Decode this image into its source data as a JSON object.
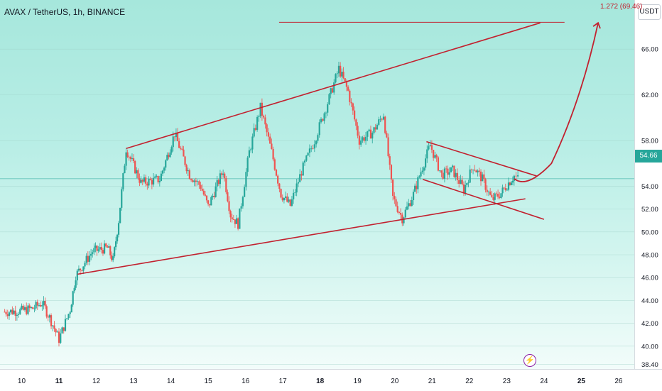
{
  "header": {
    "symbol_title": "AVAX / TetherUS, 1h, BINANCE",
    "currency": "USDT"
  },
  "current_price": "54.66",
  "fib_label": "1.272 (69.46)",
  "event_icon": "lightning-icon",
  "colors": {
    "up": "#26a69a",
    "down": "#ef5350",
    "drawing": "#c2212f",
    "event": "#8b1fa5"
  },
  "chart_data": {
    "type": "candlestick",
    "title": "AVAX / TetherUS, 1h, BINANCE",
    "ylim": [
      38.0,
      70.3
    ],
    "xlim": [
      9.42,
      26.42
    ],
    "y_ticks": [
      "66.00",
      "62.00",
      "58.00",
      "54.00",
      "52.00",
      "50.00",
      "48.00",
      "46.00",
      "44.00",
      "42.00",
      "40.00",
      "38.40"
    ],
    "x_ticks": [
      "10",
      "11",
      "12",
      "13",
      "14",
      "15",
      "16",
      "17",
      "18",
      "19",
      "20",
      "21",
      "22",
      "23",
      "24",
      "25",
      "26"
    ],
    "grid": true,
    "series": [
      {
        "x": 9.5,
        "y": 43.0
      },
      {
        "x": 10.0,
        "y": 43.1
      },
      {
        "x": 10.3,
        "y": 43.3
      },
      {
        "x": 10.55,
        "y": 43.8
      },
      {
        "x": 10.75,
        "y": 42.5
      },
      {
        "x": 11.0,
        "y": 40.6
      },
      {
        "x": 11.3,
        "y": 43.2
      },
      {
        "x": 11.45,
        "y": 46.2
      },
      {
        "x": 11.9,
        "y": 48.3
      },
      {
        "x": 12.3,
        "y": 48.6
      },
      {
        "x": 12.45,
        "y": 47.5
      },
      {
        "x": 12.6,
        "y": 51.0
      },
      {
        "x": 12.8,
        "y": 57.3
      },
      {
        "x": 13.2,
        "y": 54.3
      },
      {
        "x": 13.7,
        "y": 54.6
      },
      {
        "x": 14.1,
        "y": 58.6
      },
      {
        "x": 14.5,
        "y": 55.0
      },
      {
        "x": 14.8,
        "y": 54.0
      },
      {
        "x": 15.0,
        "y": 52.2
      },
      {
        "x": 15.4,
        "y": 55.4
      },
      {
        "x": 15.6,
        "y": 51.5
      },
      {
        "x": 15.8,
        "y": 50.7
      },
      {
        "x": 16.1,
        "y": 57.0
      },
      {
        "x": 16.4,
        "y": 60.9
      },
      {
        "x": 16.7,
        "y": 57.0
      },
      {
        "x": 16.95,
        "y": 53.3
      },
      {
        "x": 17.2,
        "y": 52.3
      },
      {
        "x": 17.5,
        "y": 55.3
      },
      {
        "x": 17.85,
        "y": 58.0
      },
      {
        "x": 18.2,
        "y": 61.3
      },
      {
        "x": 18.5,
        "y": 64.3
      },
      {
        "x": 18.75,
        "y": 62.3
      },
      {
        "x": 19.05,
        "y": 58.0
      },
      {
        "x": 19.4,
        "y": 58.7
      },
      {
        "x": 19.7,
        "y": 60.3
      },
      {
        "x": 19.95,
        "y": 53.0
      },
      {
        "x": 20.2,
        "y": 51.2
      },
      {
        "x": 20.5,
        "y": 53.3
      },
      {
        "x": 20.7,
        "y": 55.3
      },
      {
        "x": 20.95,
        "y": 57.6
      },
      {
        "x": 21.25,
        "y": 55.0
      },
      {
        "x": 21.55,
        "y": 55.4
      },
      {
        "x": 21.85,
        "y": 53.7
      },
      {
        "x": 22.1,
        "y": 55.8
      },
      {
        "x": 22.35,
        "y": 54.6
      },
      {
        "x": 22.6,
        "y": 52.8
      },
      {
        "x": 22.85,
        "y": 53.4
      },
      {
        "x": 23.05,
        "y": 54.3
      },
      {
        "x": 23.2,
        "y": 54.9
      },
      {
        "x": 23.3,
        "y": 54.66
      }
    ],
    "annotations": {
      "channel_lower": [
        [
          11.5,
          46.3
        ],
        [
          23.5,
          52.9
        ]
      ],
      "channel_upper": [
        [
          12.8,
          57.3
        ],
        [
          23.9,
          68.3
        ]
      ],
      "flag_upper": [
        [
          20.85,
          57.9
        ],
        [
          23.8,
          54.9
        ]
      ],
      "flag_lower": [
        [
          20.75,
          54.6
        ],
        [
          24.0,
          51.1
        ]
      ],
      "target_line": [
        [
          16.9,
          68.35
        ],
        [
          24.55,
          68.35
        ]
      ],
      "projection": [
        [
          23.2,
          54.66
        ],
        [
          23.55,
          54.0
        ],
        [
          24.2,
          56.0
        ],
        [
          25.0,
          61.5
        ],
        [
          25.45,
          68.3
        ]
      ]
    }
  }
}
